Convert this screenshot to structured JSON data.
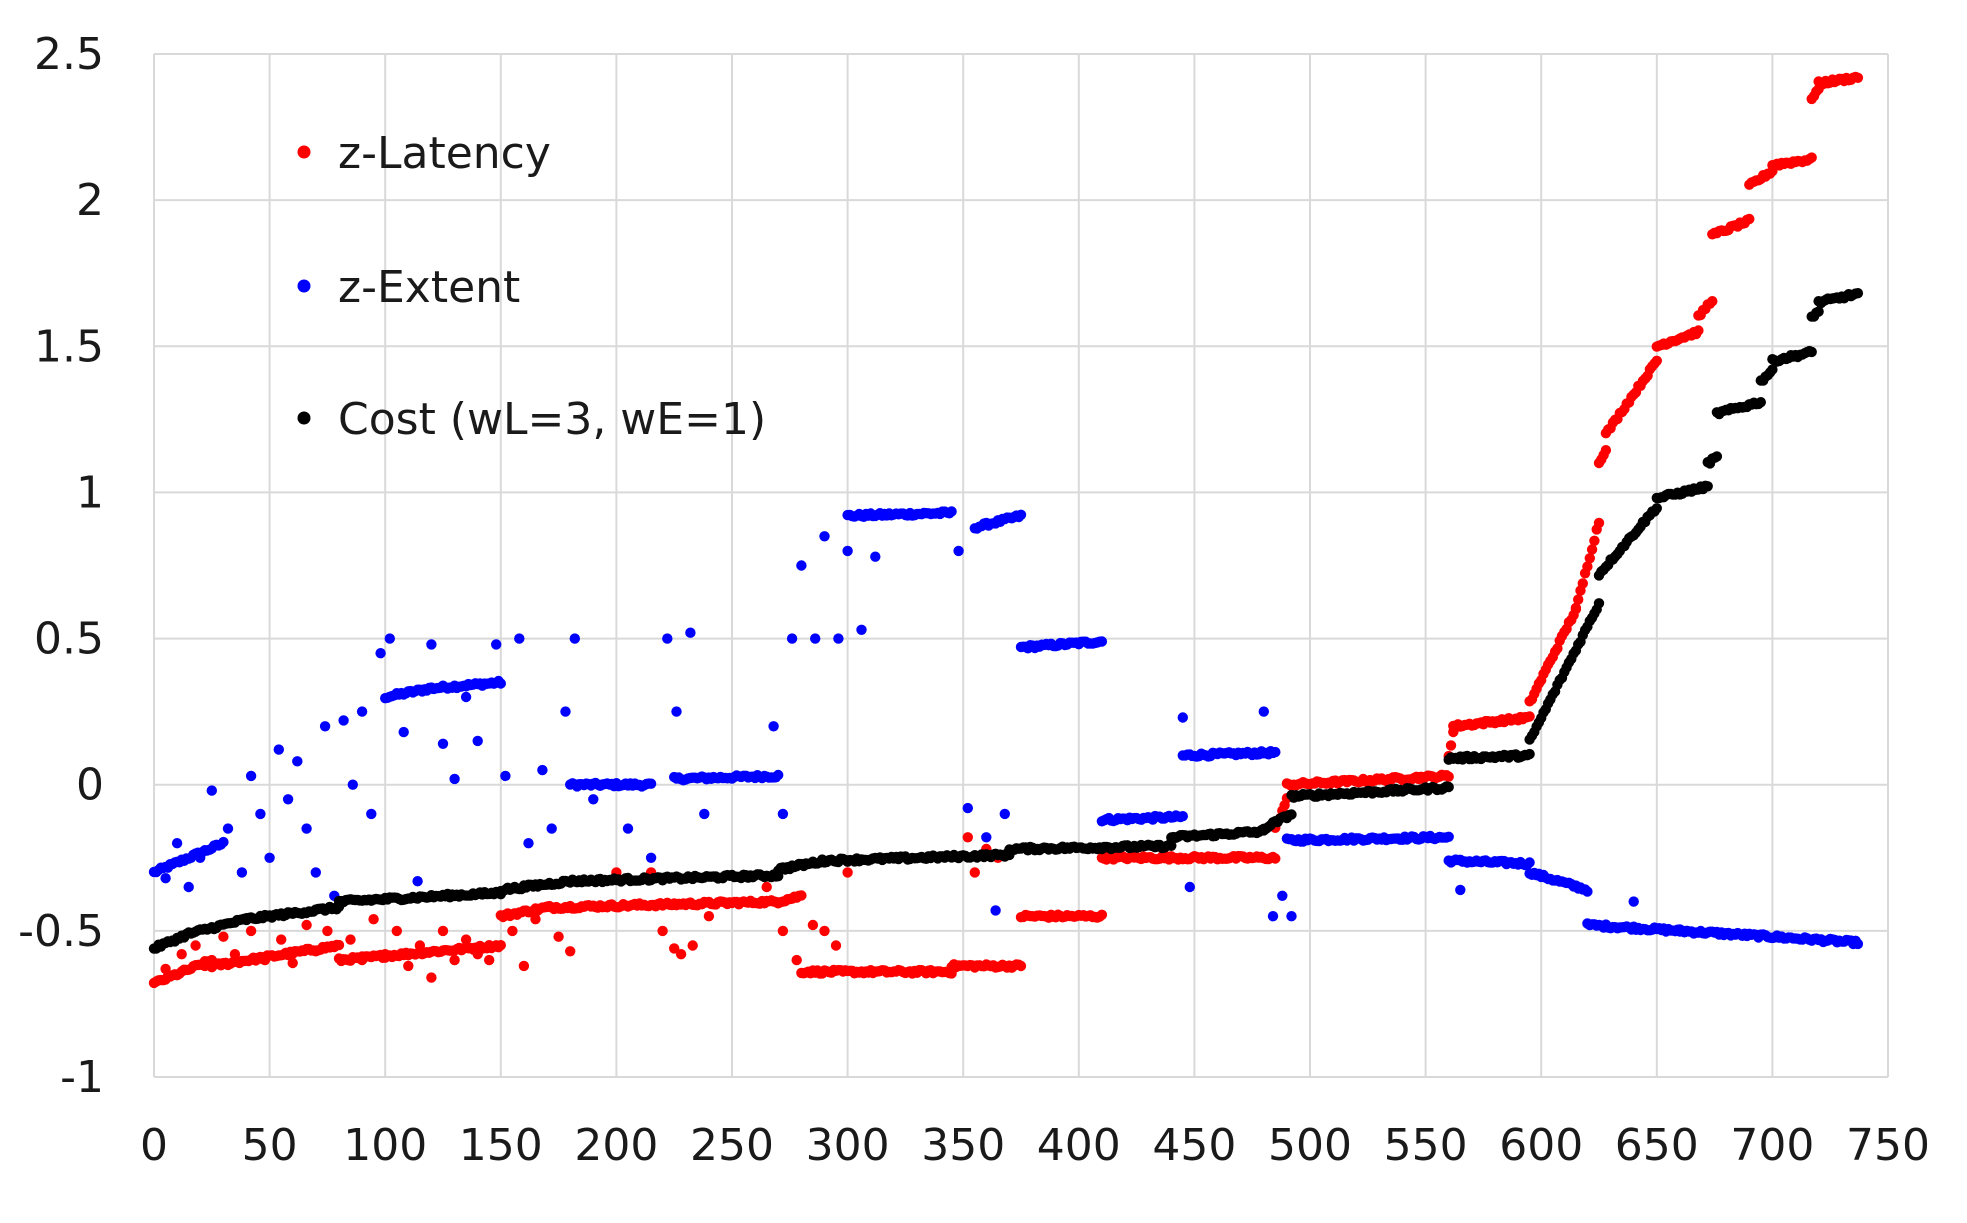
{
  "chart_data": {
    "type": "scatter",
    "title": "",
    "xlabel": "",
    "ylabel": "",
    "xlim": [
      0,
      750
    ],
    "ylim": [
      -1,
      2.5
    ],
    "xticks": [
      0,
      50,
      100,
      150,
      200,
      250,
      300,
      350,
      400,
      450,
      500,
      550,
      600,
      650,
      700,
      750
    ],
    "xtick_labels": [
      "0",
      "50",
      "100",
      "150",
      "200",
      "250",
      "300",
      "350",
      "400",
      "450",
      "500",
      "550",
      "600",
      "650",
      "700",
      "750"
    ],
    "yticks": [
      -1,
      -0.5,
      0,
      0.5,
      1,
      1.5,
      2,
      2.5
    ],
    "ytick_labels": [
      "-1",
      "-0.5",
      "0",
      "0.5",
      "1",
      "1.5",
      "2",
      "2.5"
    ],
    "grid": true,
    "legend_position": "top-left",
    "series": [
      {
        "name": "z-Latency",
        "color": "#ff0000",
        "segments": [
          [
            0,
            25,
            -0.68,
            -0.6
          ],
          [
            25,
            80,
            -0.62,
            -0.55
          ],
          [
            80,
            150,
            -0.6,
            -0.55
          ],
          [
            150,
            170,
            -0.45,
            -0.42
          ],
          [
            170,
            270,
            -0.42,
            -0.4
          ],
          [
            270,
            280,
            -0.4,
            -0.38
          ],
          [
            280,
            345,
            -0.64,
            -0.64
          ],
          [
            345,
            375,
            -0.62,
            -0.62
          ],
          [
            375,
            410,
            -0.45,
            -0.45
          ],
          [
            410,
            485,
            -0.25,
            -0.25
          ],
          [
            485,
            490,
            -0.15,
            -0.05
          ],
          [
            490,
            560,
            0.0,
            0.03
          ],
          [
            560,
            562,
            0.1,
            0.18
          ],
          [
            562,
            595,
            0.2,
            0.23
          ],
          [
            595,
            615,
            0.28,
            0.6
          ],
          [
            615,
            625,
            0.6,
            0.9
          ],
          [
            625,
            628,
            1.1,
            1.15
          ],
          [
            628,
            650,
            1.2,
            1.45
          ],
          [
            650,
            668,
            1.5,
            1.55
          ],
          [
            668,
            674,
            1.6,
            1.66
          ],
          [
            674,
            690,
            1.88,
            1.93
          ],
          [
            690,
            700,
            2.05,
            2.1
          ],
          [
            700,
            717,
            2.12,
            2.14
          ],
          [
            717,
            720,
            2.35,
            2.38
          ],
          [
            720,
            737,
            2.4,
            2.42
          ]
        ],
        "scatter_extra": [
          [
            5,
            -0.63
          ],
          [
            12,
            -0.58
          ],
          [
            18,
            -0.55
          ],
          [
            22,
            -0.62
          ],
          [
            30,
            -0.52
          ],
          [
            35,
            -0.58
          ],
          [
            42,
            -0.5
          ],
          [
            48,
            -0.6
          ],
          [
            55,
            -0.53
          ],
          [
            60,
            -0.61
          ],
          [
            66,
            -0.48
          ],
          [
            70,
            -0.57
          ],
          [
            75,
            -0.5
          ],
          [
            85,
            -0.53
          ],
          [
            90,
            -0.6
          ],
          [
            95,
            -0.46
          ],
          [
            100,
            -0.58
          ],
          [
            105,
            -0.5
          ],
          [
            110,
            -0.62
          ],
          [
            115,
            -0.55
          ],
          [
            120,
            -0.66
          ],
          [
            125,
            -0.5
          ],
          [
            130,
            -0.6
          ],
          [
            135,
            -0.53
          ],
          [
            140,
            -0.58
          ],
          [
            145,
            -0.6
          ],
          [
            155,
            -0.5
          ],
          [
            160,
            -0.62
          ],
          [
            165,
            -0.46
          ],
          [
            175,
            -0.52
          ],
          [
            180,
            -0.57
          ],
          [
            200,
            -0.3
          ],
          [
            215,
            -0.3
          ],
          [
            220,
            -0.5
          ],
          [
            225,
            -0.56
          ],
          [
            228,
            -0.58
          ],
          [
            233,
            -0.55
          ],
          [
            240,
            -0.45
          ],
          [
            265,
            -0.35
          ],
          [
            272,
            -0.5
          ],
          [
            278,
            -0.6
          ],
          [
            285,
            -0.48
          ],
          [
            290,
            -0.5
          ],
          [
            295,
            -0.55
          ],
          [
            300,
            -0.3
          ],
          [
            352,
            -0.18
          ],
          [
            355,
            -0.3
          ],
          [
            360,
            -0.22
          ],
          [
            365,
            -0.25
          ]
        ]
      },
      {
        "name": "z-Extent",
        "color": "#0000ff",
        "segments": [
          [
            0,
            30,
            -0.3,
            -0.2
          ],
          [
            100,
            120,
            0.3,
            0.33
          ],
          [
            120,
            150,
            0.33,
            0.35
          ],
          [
            180,
            215,
            0.0,
            0.0
          ],
          [
            225,
            270,
            0.02,
            0.03
          ],
          [
            300,
            345,
            0.92,
            0.93
          ],
          [
            355,
            375,
            0.88,
            0.92
          ],
          [
            375,
            410,
            0.47,
            0.49
          ],
          [
            410,
            445,
            -0.12,
            -0.11
          ],
          [
            445,
            485,
            0.1,
            0.11
          ],
          [
            490,
            560,
            -0.19,
            -0.18
          ],
          [
            560,
            595,
            -0.26,
            -0.27
          ],
          [
            595,
            620,
            -0.3,
            -0.36
          ],
          [
            620,
            660,
            -0.48,
            -0.5
          ],
          [
            660,
            700,
            -0.5,
            -0.52
          ],
          [
            700,
            737,
            -0.52,
            -0.54
          ]
        ],
        "scatter_extra": [
          [
            5,
            -0.32
          ],
          [
            10,
            -0.2
          ],
          [
            15,
            -0.35
          ],
          [
            20,
            -0.25
          ],
          [
            25,
            -0.02
          ],
          [
            32,
            -0.15
          ],
          [
            38,
            -0.3
          ],
          [
            42,
            0.03
          ],
          [
            46,
            -0.1
          ],
          [
            50,
            -0.25
          ],
          [
            54,
            0.12
          ],
          [
            58,
            -0.05
          ],
          [
            62,
            0.08
          ],
          [
            66,
            -0.15
          ],
          [
            70,
            -0.3
          ],
          [
            74,
            0.2
          ],
          [
            78,
            -0.38
          ],
          [
            82,
            0.22
          ],
          [
            86,
            0.0
          ],
          [
            90,
            0.25
          ],
          [
            94,
            -0.1
          ],
          [
            98,
            0.45
          ],
          [
            102,
            0.5
          ],
          [
            108,
            0.18
          ],
          [
            114,
            -0.33
          ],
          [
            120,
            0.48
          ],
          [
            125,
            0.14
          ],
          [
            130,
            0.02
          ],
          [
            135,
            0.3
          ],
          [
            140,
            0.15
          ],
          [
            148,
            0.48
          ],
          [
            152,
            0.03
          ],
          [
            158,
            0.5
          ],
          [
            162,
            -0.2
          ],
          [
            168,
            0.05
          ],
          [
            172,
            -0.15
          ],
          [
            178,
            0.25
          ],
          [
            182,
            0.5
          ],
          [
            190,
            -0.05
          ],
          [
            205,
            -0.15
          ],
          [
            215,
            -0.25
          ],
          [
            222,
            0.5
          ],
          [
            226,
            0.25
          ],
          [
            232,
            0.52
          ],
          [
            238,
            -0.1
          ],
          [
            268,
            0.2
          ],
          [
            272,
            -0.1
          ],
          [
            276,
            0.5
          ],
          [
            280,
            0.75
          ],
          [
            286,
            0.5
          ],
          [
            290,
            0.85
          ],
          [
            296,
            0.5
          ],
          [
            300,
            0.8
          ],
          [
            306,
            0.53
          ],
          [
            312,
            0.78
          ],
          [
            348,
            0.8
          ],
          [
            352,
            -0.08
          ],
          [
            360,
            -0.18
          ],
          [
            364,
            -0.43
          ],
          [
            368,
            -0.1
          ],
          [
            445,
            0.23
          ],
          [
            448,
            -0.35
          ],
          [
            480,
            0.25
          ],
          [
            484,
            -0.45
          ],
          [
            488,
            -0.38
          ],
          [
            492,
            -0.45
          ],
          [
            565,
            -0.36
          ],
          [
            640,
            -0.4
          ]
        ]
      },
      {
        "name": "Cost (wL=3, wE=1)",
        "color": "#000000",
        "segments": [
          [
            0,
            15,
            -0.56,
            -0.51
          ],
          [
            15,
            40,
            -0.51,
            -0.46
          ],
          [
            40,
            80,
            -0.46,
            -0.42
          ],
          [
            80,
            150,
            -0.4,
            -0.37
          ],
          [
            150,
            180,
            -0.36,
            -0.33
          ],
          [
            180,
            270,
            -0.33,
            -0.31
          ],
          [
            270,
            290,
            -0.29,
            -0.26
          ],
          [
            290,
            370,
            -0.26,
            -0.24
          ],
          [
            370,
            440,
            -0.22,
            -0.21
          ],
          [
            440,
            480,
            -0.18,
            -0.16
          ],
          [
            480,
            492,
            -0.15,
            -0.1
          ],
          [
            492,
            560,
            -0.04,
            -0.01
          ],
          [
            560,
            595,
            0.09,
            0.1
          ],
          [
            595,
            625,
            0.15,
            0.62
          ],
          [
            625,
            650,
            0.72,
            0.95
          ],
          [
            650,
            672,
            0.98,
            1.02
          ],
          [
            672,
            676,
            1.1,
            1.12
          ],
          [
            676,
            695,
            1.27,
            1.31
          ],
          [
            695,
            700,
            1.38,
            1.42
          ],
          [
            700,
            717,
            1.45,
            1.48
          ],
          [
            717,
            720,
            1.6,
            1.62
          ],
          [
            720,
            737,
            1.65,
            1.68
          ]
        ],
        "scatter_extra": []
      }
    ]
  }
}
